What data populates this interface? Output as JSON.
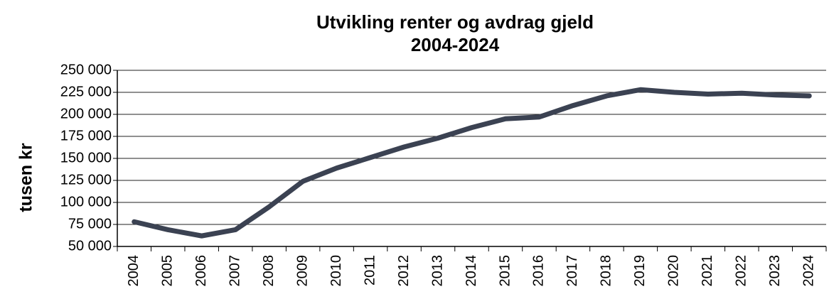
{
  "chart_data": {
    "type": "line",
    "title": [
      "Utvikling renter og avdrag gjeld",
      "2004-2024"
    ],
    "y_label": "tusen kr",
    "categories": [
      "2004",
      "2005",
      "2006",
      "2007",
      "2008",
      "2009",
      "2010",
      "2011",
      "2012",
      "2013",
      "2014",
      "2015",
      "2016",
      "2017",
      "2018",
      "2019",
      "2020",
      "2021",
      "2022",
      "2023",
      "2024"
    ],
    "values": [
      78000,
      69000,
      62000,
      69000,
      95000,
      124000,
      139000,
      151000,
      163000,
      173000,
      185000,
      195000,
      197000,
      210000,
      221000,
      228000,
      225000,
      223000,
      224000,
      222000,
      221000
    ],
    "color": "#3b4252",
    "ylim": [
      50000,
      250000
    ],
    "yticks": [
      {
        "value": 50000,
        "label": "50 000"
      },
      {
        "value": 75000,
        "label": "75 000"
      },
      {
        "value": 100000,
        "label": "100 000"
      },
      {
        "value": 125000,
        "label": "125 000"
      },
      {
        "value": 150000,
        "label": "150 000"
      },
      {
        "value": 175000,
        "label": "175 000"
      },
      {
        "value": 200000,
        "label": "200 000"
      },
      {
        "value": 225000,
        "label": "225 000"
      },
      {
        "value": 250000,
        "label": "250 000"
      }
    ],
    "grid": true
  }
}
